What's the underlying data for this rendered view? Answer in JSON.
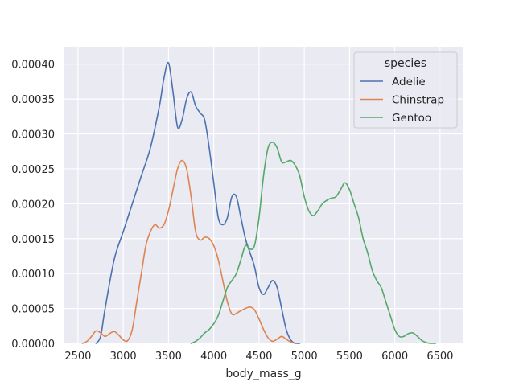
{
  "chart_data": {
    "type": "line",
    "title": "",
    "xlabel": "body_mass_g",
    "ylabel": "",
    "xlim": [
      2350,
      6750
    ],
    "ylim": [
      0,
      0.000425
    ],
    "x_ticks": [
      2500,
      3000,
      3500,
      4000,
      4500,
      5000,
      5500,
      6000,
      6500
    ],
    "x_tick_labels": [
      "2500",
      "3000",
      "3500",
      "4000",
      "4500",
      "5000",
      "5500",
      "6000",
      "6500"
    ],
    "y_ticks": [
      0,
      5e-05,
      0.0001,
      0.00015,
      0.0002,
      0.00025,
      0.0003,
      0.00035,
      0.0004
    ],
    "y_tick_labels": [
      "0.00000",
      "0.00005",
      "0.00010",
      "0.00015",
      "0.00020",
      "0.00025",
      "0.00030",
      "0.00035",
      "0.00040"
    ],
    "grid": true,
    "legend": {
      "title": "species",
      "placement": "top-right"
    },
    "series": [
      {
        "name": "Adelie",
        "color": "#4c72b0",
        "x": [
          2700,
          2750,
          2800,
          2900,
          3000,
          3100,
          3200,
          3300,
          3400,
          3450,
          3500,
          3550,
          3600,
          3650,
          3700,
          3750,
          3800,
          3850,
          3900,
          3950,
          4000,
          4050,
          4100,
          4150,
          4200,
          4250,
          4300,
          4350,
          4400,
          4450,
          4500,
          4550,
          4600,
          4650,
          4700,
          4750,
          4800,
          4850,
          4900,
          4950
        ],
        "y": [
          0.0,
          1e-05,
          5e-05,
          0.00012,
          0.00016,
          0.0002,
          0.00024,
          0.00028,
          0.00034,
          0.00038,
          0.000402,
          0.00036,
          0.00031,
          0.00032,
          0.00035,
          0.00036,
          0.00034,
          0.00033,
          0.00032,
          0.00028,
          0.00023,
          0.00018,
          0.00017,
          0.00018,
          0.00021,
          0.00021,
          0.00018,
          0.00015,
          0.00013,
          0.00011,
          8e-05,
          7e-05,
          8e-05,
          9e-05,
          8e-05,
          5e-05,
          2e-05,
          5e-06,
          0.0,
          0.0
        ]
      },
      {
        "name": "Chinstrap",
        "color": "#dd8452",
        "x": [
          2550,
          2600,
          2650,
          2700,
          2750,
          2800,
          2850,
          2900,
          2950,
          3000,
          3050,
          3100,
          3150,
          3200,
          3250,
          3300,
          3350,
          3400,
          3450,
          3500,
          3550,
          3600,
          3650,
          3700,
          3750,
          3800,
          3850,
          3900,
          3950,
          4000,
          4050,
          4100,
          4150,
          4200,
          4250,
          4300,
          4350,
          4400,
          4450,
          4500,
          4550,
          4600,
          4650,
          4700,
          4750,
          4800,
          4850,
          4900
        ],
        "y": [
          0.0,
          3e-06,
          1e-05,
          1.8e-05,
          1.5e-05,
          1e-05,
          1.4e-05,
          1.7e-05,
          1.2e-05,
          5e-06,
          4e-06,
          2e-05,
          6e-05,
          0.0001,
          0.00014,
          0.00016,
          0.00017,
          0.000165,
          0.00017,
          0.00019,
          0.00022,
          0.00025,
          0.000262,
          0.00025,
          0.00021,
          0.00016,
          0.000148,
          0.000152,
          0.00015,
          0.00014,
          0.00012,
          9e-05,
          6e-05,
          4.2e-05,
          4.3e-05,
          4.7e-05,
          5e-05,
          5.2e-05,
          4.8e-05,
          3.5e-05,
          2e-05,
          8e-06,
          3e-06,
          6e-06,
          1e-05,
          6e-06,
          2e-06,
          0.0
        ]
      },
      {
        "name": "Gentoo",
        "color": "#55a868",
        "x": [
          3750,
          3800,
          3850,
          3900,
          3950,
          4000,
          4050,
          4100,
          4150,
          4200,
          4250,
          4300,
          4350,
          4400,
          4450,
          4500,
          4550,
          4600,
          4650,
          4700,
          4750,
          4800,
          4850,
          4900,
          4950,
          5000,
          5050,
          5100,
          5150,
          5200,
          5250,
          5300,
          5350,
          5400,
          5450,
          5500,
          5550,
          5600,
          5650,
          5700,
          5750,
          5800,
          5850,
          5900,
          5950,
          6000,
          6050,
          6100,
          6150,
          6200,
          6250,
          6300,
          6350,
          6400,
          6450
        ],
        "y": [
          0.0,
          3e-06,
          8e-06,
          1.5e-05,
          2e-05,
          2.8e-05,
          4e-05,
          6e-05,
          8e-05,
          9e-05,
          0.0001,
          0.00012,
          0.00014,
          0.000135,
          0.00014,
          0.00018,
          0.00024,
          0.00028,
          0.000288,
          0.00028,
          0.00026,
          0.00026,
          0.000262,
          0.000255,
          0.00024,
          0.00021,
          0.00019,
          0.000183,
          0.00019,
          0.0002,
          0.000205,
          0.000208,
          0.00021,
          0.00022,
          0.00023,
          0.00022,
          0.0002,
          0.00018,
          0.00015,
          0.00013,
          0.000105,
          9e-05,
          8e-05,
          6e-05,
          4e-05,
          2e-05,
          1e-05,
          1e-05,
          1.4e-05,
          1.5e-05,
          1e-05,
          4e-06,
          1e-06,
          0.0,
          0.0
        ]
      }
    ]
  }
}
